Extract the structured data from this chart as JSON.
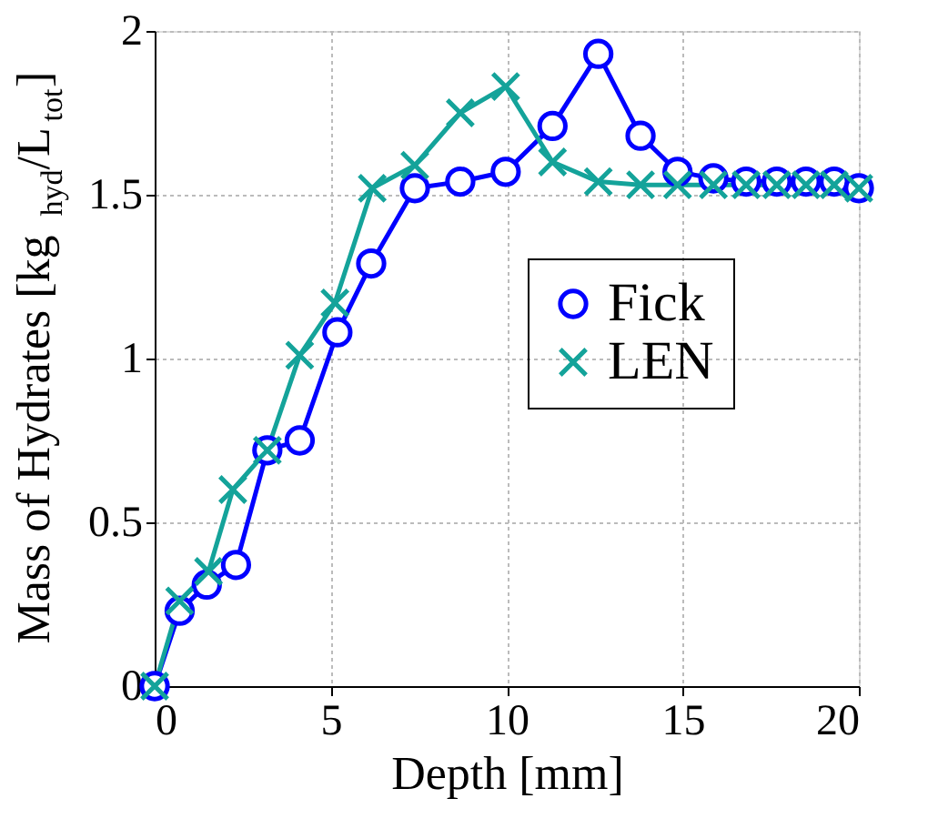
{
  "chart_data": {
    "type": "line",
    "xlabel": "Depth [mm]",
    "ylabel": "Mass of Hydrates [kg$_{hyd}$/L$_{tot}$]",
    "xlim": [
      0,
      20
    ],
    "xticks": [
      0,
      5,
      10,
      15,
      20
    ],
    "ylim": [
      0,
      2
    ],
    "yticks": [
      0,
      0.5,
      1,
      1.5,
      2
    ],
    "grid": true,
    "legend": "right",
    "line_style": "solid",
    "series": [
      {
        "name": "Fick",
        "color": "#0000ff",
        "marker": "circle",
        "x": [
          0,
          0.71,
          1.48,
          2.31,
          3.2,
          4.12,
          5.19,
          6.15,
          7.39,
          8.68,
          9.97,
          11.3,
          12.6,
          13.8,
          14.85,
          15.87,
          16.8,
          17.67,
          18.5,
          19.3,
          20
        ],
        "values": [
          0,
          0.23,
          0.31,
          0.37,
          0.72,
          0.75,
          1.08,
          1.29,
          1.52,
          1.54,
          1.57,
          1.71,
          1.93,
          1.68,
          1.57,
          1.55,
          1.54,
          1.54,
          1.54,
          1.54,
          1.52
        ]
      },
      {
        "name": "LEN",
        "color": "#14a39a",
        "marker": "cross",
        "x": [
          0,
          0.71,
          1.53,
          2.22,
          3.2,
          4.12,
          5.12,
          6.18,
          7.39,
          8.68,
          9.97,
          11.3,
          12.6,
          13.8,
          14.85,
          15.87,
          16.8,
          17.67,
          18.5,
          19.3,
          20
        ],
        "values": [
          0,
          0.26,
          0.35,
          0.6,
          0.72,
          1.01,
          1.17,
          1.52,
          1.59,
          1.75,
          1.83,
          1.6,
          1.54,
          1.53,
          1.53,
          1.53,
          1.53,
          1.53,
          1.53,
          1.53,
          1.52
        ]
      }
    ]
  }
}
